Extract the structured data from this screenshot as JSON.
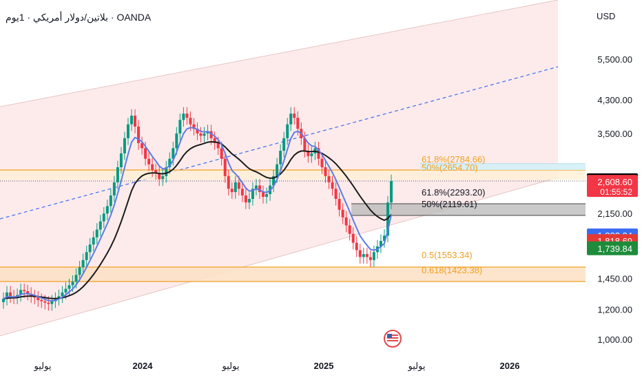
{
  "header": {
    "symbol_title": "بلاتين/دولار أمريكي · 1يوم · OANDA"
  },
  "currency": "USD",
  "colors": {
    "up": "#089981",
    "down": "#f23645",
    "ema_fast": "#5b7ce6",
    "ema_slow": "#1a1a1a",
    "channel_fill": "#fde8e8",
    "fib_orange": "#f0a020",
    "axis_text": "#131722"
  },
  "chart_data": {
    "type": "candlestick",
    "scale": "log",
    "price_axis_ticks": [
      "5,500.00",
      "4,300.00",
      "3,500.00",
      "2,150.00",
      "1,450.00",
      "1,200.00",
      "1,000.00"
    ],
    "time_axis_ticks": [
      "يوليو",
      "2024",
      "يوليو",
      "2025",
      "يوليو",
      "2026"
    ],
    "price_labels": [
      {
        "text": "2,633.40",
        "bg": "#000000",
        "fg": "#ffffff"
      },
      {
        "text": "2,608.60",
        "sub": "01:55:52",
        "bg": "#f23645",
        "fg": "#ffffff"
      },
      {
        "text": "1,882.34",
        "bg": "#3a6df0",
        "fg": "#ffffff"
      },
      {
        "text": "1,818.69",
        "bg": "#e53935",
        "fg": "#ffffff"
      },
      {
        "text": "1,739.84",
        "bg": "#1e8c3a",
        "fg": "#ffffff"
      }
    ],
    "fib_labels": [
      {
        "text": "61.8%(2784.66)",
        "color": "#f0a020"
      },
      {
        "text": "50%(2654.70)",
        "color": "#f0a020"
      },
      {
        "text": "61.8%(2293.20)",
        "color": "#131722"
      },
      {
        "text": "50%(2119.61)",
        "color": "#131722"
      },
      {
        "text": "0.5(1553.34)",
        "color": "#f0a020"
      },
      {
        "text": "0.618(1423.38)",
        "color": "#f0a020"
      }
    ],
    "close": [
      1280,
      1330,
      1300,
      1290,
      1310,
      1350,
      1340,
      1320,
      1300,
      1290,
      1270,
      1260,
      1250,
      1240,
      1260,
      1280,
      1300,
      1330,
      1360,
      1390,
      1420,
      1480,
      1550,
      1620,
      1700,
      1780,
      1860,
      1950,
      2050,
      2150,
      2250,
      2400,
      2600,
      2850,
      3100,
      3400,
      3700,
      3900,
      3650,
      3300,
      3200,
      3000,
      2900,
      2800,
      2750,
      2650,
      2700,
      2850,
      3000,
      3200,
      3500,
      3800,
      3950,
      3850,
      3700,
      3600,
      3500,
      3450,
      3500,
      3550,
      3400,
      3300,
      3200,
      3000,
      2700,
      2500,
      2450,
      2600,
      2500,
      2400,
      2300,
      2350,
      2500,
      2550,
      2450,
      2380,
      2420,
      2550,
      2700,
      2900,
      3150,
      3400,
      3700,
      3950,
      3850,
      3600,
      3400,
      3150,
      3050,
      3100,
      3200,
      3000,
      2850,
      2700,
      2600,
      2500,
      2350,
      2200,
      2100,
      2000,
      1900,
      1800,
      1720,
      1650,
      1680,
      1650,
      1620,
      1700,
      1760,
      1820,
      1880,
      2300,
      2620
    ],
    "series": [
      {
        "name": "EMA fast",
        "color": "#5b7ce6"
      },
      {
        "name": "EMA slow",
        "color": "#1a1a1a"
      }
    ]
  }
}
